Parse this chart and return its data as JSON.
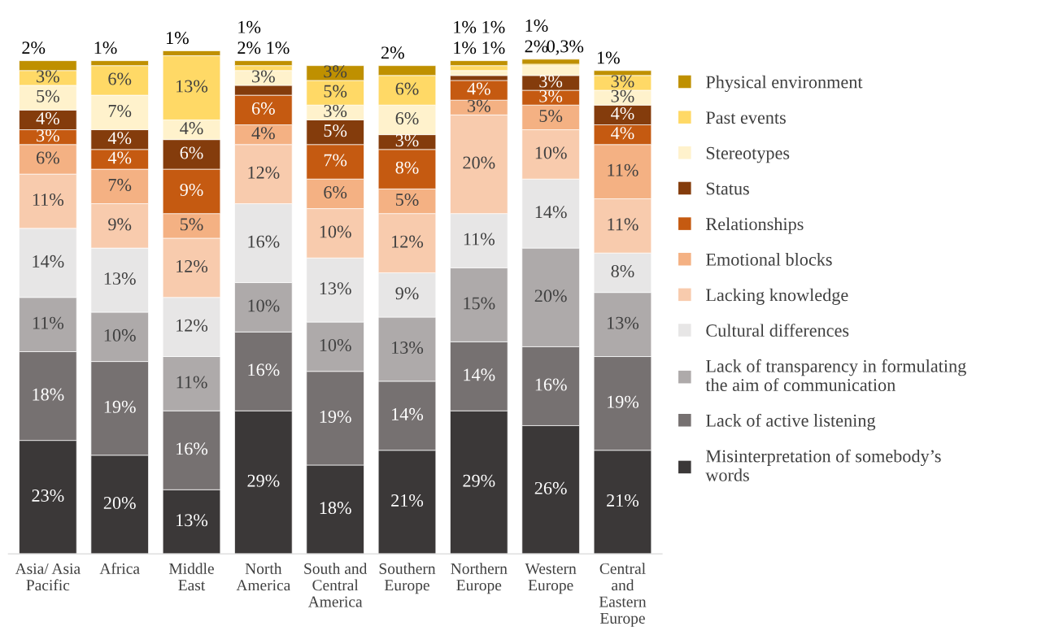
{
  "chart_data": {
    "type": "bar",
    "stacked": true,
    "legend": "right",
    "tick_labels": "x",
    "grid": false,
    "categories": [
      "Asia/ Asia\nPacific",
      "Africa",
      "Middle\nEast",
      "North\nAmerica",
      "South and\nCentral\nAmerica",
      "Southern\nEurope",
      "Northern\nEurope",
      "Western\nEurope",
      "Central\nand\nEastern\nEurope"
    ],
    "series": [
      {
        "name": "Misinterpretation of somebody’s\nwords",
        "color": "#3b3838",
        "values": [
          23,
          20,
          13,
          29,
          18,
          21,
          29,
          26,
          21
        ],
        "value_labels": [
          "23%",
          "20%",
          "13%",
          "29%",
          "18%",
          "21%",
          "29%",
          "26%",
          "21%"
        ]
      },
      {
        "name": "Lack of active listening",
        "color": "#767171",
        "values": [
          18,
          19,
          16,
          16,
          19,
          14,
          14,
          16,
          19
        ],
        "value_labels": [
          "18%",
          "19%",
          "16%",
          "16%",
          "19%",
          "14%",
          "14%",
          "16%",
          "19%"
        ]
      },
      {
        "name": "Lack of transparency in formulating\nthe aim of communication",
        "color": "#aeaaaa",
        "values": [
          11,
          10,
          11,
          10,
          10,
          13,
          15,
          20,
          13
        ],
        "value_labels": [
          "11%",
          "10%",
          "11%",
          "10%",
          "10%",
          "13%",
          "15%",
          "20%",
          "13%"
        ]
      },
      {
        "name": "Cultural differences",
        "color": "#e7e6e6",
        "values": [
          14,
          13,
          12,
          16,
          13,
          9,
          11,
          14,
          8
        ],
        "value_labels": [
          "14%",
          "13%",
          "12%",
          "16%",
          "13%",
          "9%",
          "11%",
          "14%",
          "8%"
        ]
      },
      {
        "name": "Lacking knowledge",
        "color": "#f8cbad",
        "values": [
          11,
          9,
          12,
          12,
          10,
          12,
          20,
          10,
          11
        ],
        "value_labels": [
          "11%",
          "9%",
          "12%",
          "12%",
          "10%",
          "12%",
          "20%",
          "10%",
          "11%"
        ]
      },
      {
        "name": "Emotional blocks",
        "color": "#f4b183",
        "values": [
          6,
          7,
          5,
          4,
          6,
          5,
          3,
          5,
          11
        ],
        "value_labels": [
          "6%",
          "7%",
          "5%",
          "4%",
          "6%",
          "5%",
          "3%",
          "5%",
          "11%"
        ]
      },
      {
        "name": "Relationships",
        "color": "#c55a11",
        "values": [
          3,
          4,
          9,
          6,
          7,
          8,
          4,
          3,
          4
        ],
        "value_labels": [
          "3%",
          "4%",
          "9%",
          "6%",
          "7%",
          "8%",
          "4%",
          "3%",
          "4%"
        ]
      },
      {
        "name": "Status",
        "color": "#843c0c",
        "values": [
          4,
          4,
          6,
          2,
          5,
          3,
          1,
          3,
          4
        ],
        "value_labels": [
          "4%",
          "4%",
          "6%",
          "2%",
          "5%",
          "3%",
          "1%",
          "3%",
          "4%"
        ]
      },
      {
        "name": "Stereotypes",
        "color": "#fff2cc",
        "values": [
          5,
          7,
          4,
          3,
          3,
          6,
          1,
          2,
          3
        ],
        "value_labels": [
          "5%",
          "7%",
          "4%",
          "3%",
          "3%",
          "6%",
          "1%",
          "2%",
          "3%"
        ]
      },
      {
        "name": "Past events",
        "color": "#ffd966",
        "values": [
          3,
          6,
          13,
          1,
          5,
          6,
          1,
          0.3,
          3
        ],
        "value_labels": [
          "3%",
          "6%",
          "13%",
          "1%",
          "5%",
          "6%",
          "1%",
          "0,3%",
          "3%"
        ]
      },
      {
        "name": "Physical environment",
        "color": "#bf9000",
        "values": [
          2,
          1,
          1,
          1,
          3,
          2,
          1,
          1,
          1
        ],
        "value_labels": [
          "2%",
          "1%",
          "1%",
          "1%",
          "3%",
          "2%",
          "1%",
          "1%",
          "1%"
        ]
      }
    ]
  }
}
